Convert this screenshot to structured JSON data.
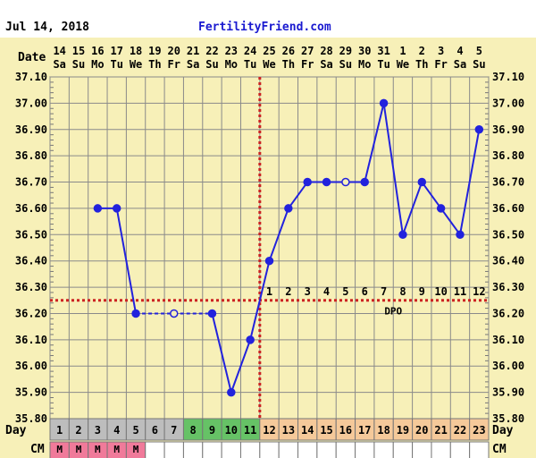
{
  "header": {
    "date": "Jul 14, 2018",
    "site": "FertilityFriend.com"
  },
  "row_labels": {
    "date": "Date",
    "day": "Day",
    "cm": "CM"
  },
  "dpo_label": "DPO",
  "colors": {
    "background": "#f7f0b8",
    "grid": "#8a8a8a",
    "line": "#2222dd",
    "coverline": "#cc2222",
    "ovulation": "#cc2222",
    "header_blue": "#1a1ad0",
    "phase_gray": "#bdbdbd",
    "phase_green": "#66c266",
    "phase_orange": "#f5c99a",
    "cm_pink": "#f07a9a"
  },
  "chart_data": {
    "type": "line",
    "ylim": [
      35.8,
      37.1
    ],
    "yticks": [
      "35.80",
      "35.90",
      "36.00",
      "36.10",
      "36.20",
      "36.30",
      "36.40",
      "36.50",
      "36.60",
      "36.70",
      "36.80",
      "36.90",
      "37.00",
      "37.10"
    ],
    "dates": [
      "14",
      "15",
      "16",
      "17",
      "18",
      "19",
      "20",
      "21",
      "22",
      "23",
      "24",
      "25",
      "26",
      "27",
      "28",
      "29",
      "30",
      "31",
      "1",
      "2",
      "3",
      "4",
      "5"
    ],
    "weekdays": [
      "Sa",
      "Su",
      "Mo",
      "Tu",
      "We",
      "Th",
      "Fr",
      "Sa",
      "Su",
      "Mo",
      "Tu",
      "We",
      "Th",
      "Fr",
      "Sa",
      "Su",
      "Mo",
      "Tu",
      "We",
      "Th",
      "Fr",
      "Sa",
      "Su"
    ],
    "cycle_days": [
      "1",
      "2",
      "3",
      "4",
      "5",
      "6",
      "7",
      "8",
      "9",
      "10",
      "11",
      "12",
      "13",
      "14",
      "15",
      "16",
      "17",
      "18",
      "19",
      "20",
      "21",
      "22",
      "23"
    ],
    "temperatures": [
      null,
      null,
      36.6,
      36.6,
      36.2,
      null,
      36.2,
      null,
      36.2,
      35.9,
      36.1,
      36.4,
      36.6,
      36.7,
      36.7,
      36.7,
      36.7,
      37.0,
      36.5,
      36.7,
      36.6,
      36.5,
      36.9
    ],
    "open_points": [
      6,
      15
    ],
    "dashed_segments": [
      [
        4,
        8
      ]
    ],
    "coverline": 36.25,
    "ovulation_day_index": 10,
    "dpo": [
      "1",
      "2",
      "3",
      "4",
      "5",
      "6",
      "7",
      "8",
      "9",
      "10",
      "11",
      "12"
    ],
    "phases": [
      "gray",
      "gray",
      "gray",
      "gray",
      "gray",
      "gray",
      "gray",
      "green",
      "green",
      "green",
      "green",
      "orange",
      "orange",
      "orange",
      "orange",
      "orange",
      "orange",
      "orange",
      "orange",
      "orange",
      "orange",
      "orange",
      "orange"
    ],
    "cm": [
      "M",
      "M",
      "M",
      "M",
      "M",
      "",
      "",
      "",
      "",
      "",
      "",
      "",
      "",
      "",
      "",
      "",
      "",
      "",
      "",
      "",
      "",
      "",
      ""
    ]
  }
}
